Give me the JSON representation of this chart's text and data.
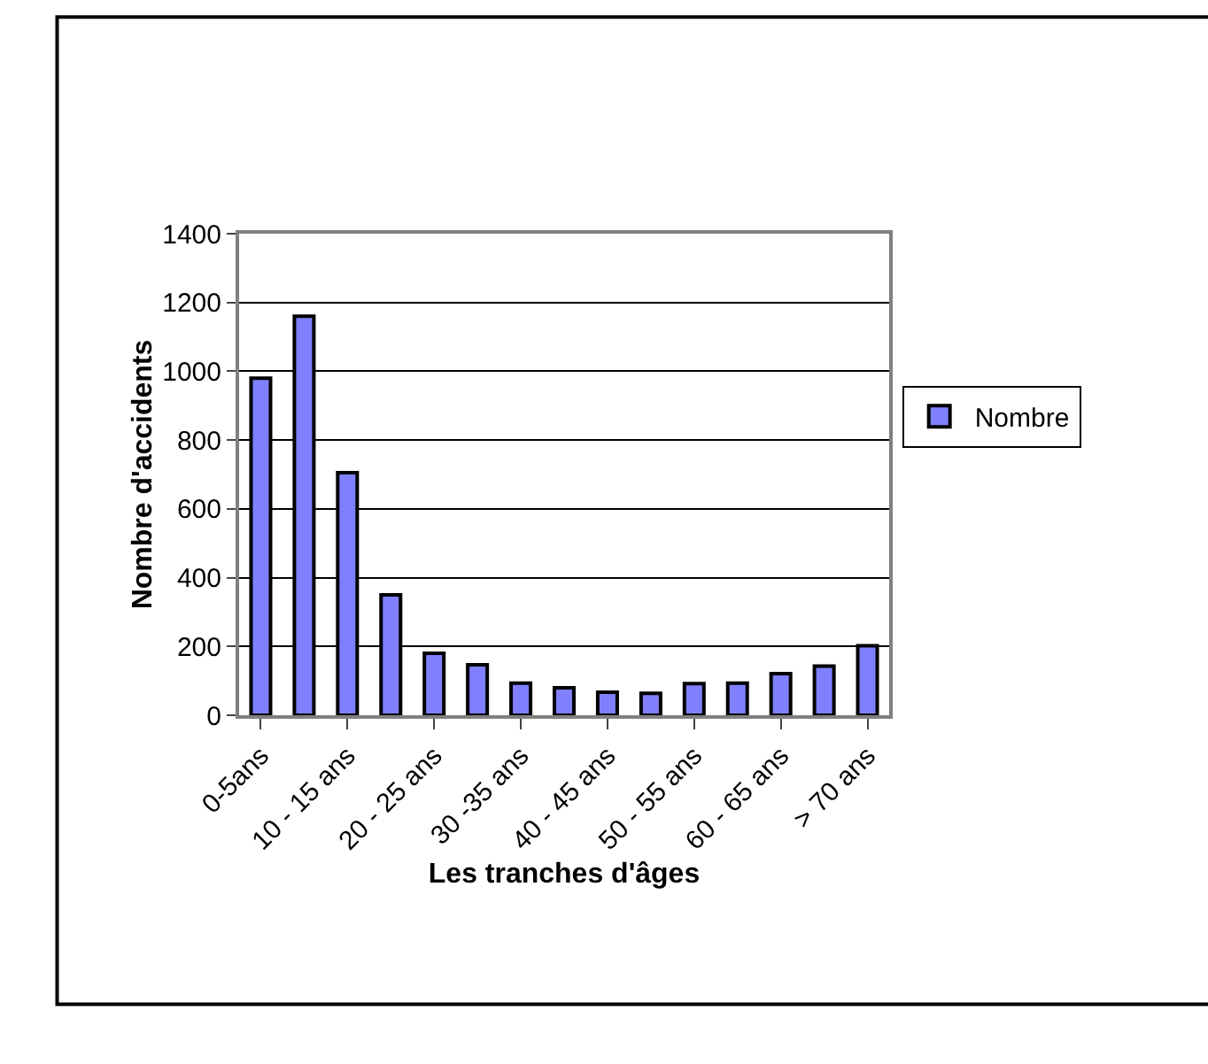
{
  "chart_data": {
    "type": "bar",
    "xlabel": "Les tranches d'âges",
    "ylabel": "Nombre d'accidents",
    "categories": [
      "0-5ans",
      null,
      "10 - 15 ans",
      null,
      "20 - 25 ans",
      null,
      "30 -35 ans",
      null,
      "40 - 45 ans",
      null,
      "50 - 55 ans",
      null,
      "60 - 65 ans",
      null,
      "> 70 ans"
    ],
    "series": [
      {
        "name": "Nombre",
        "color": "#8080ff",
        "values": [
          980,
          1160,
          705,
          350,
          180,
          147,
          93,
          80,
          67,
          64,
          92,
          93,
          121,
          143,
          202
        ]
      }
    ],
    "ylim": [
      0,
      1400
    ],
    "yticks": [
      0,
      200,
      400,
      600,
      800,
      1000,
      1200,
      1400
    ],
    "grid": "y",
    "legend": "right"
  }
}
